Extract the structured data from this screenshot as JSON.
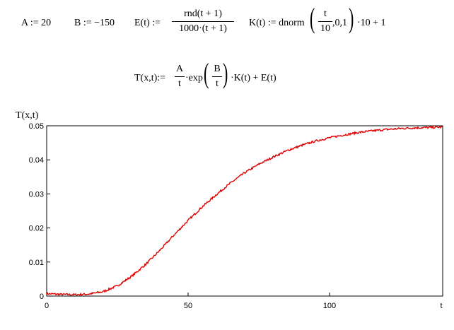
{
  "definitions": {
    "a_def": "A := 20",
    "b_def": "B := −150",
    "e_lhs": "E(t) :=",
    "e_num": "rnd(t + 1)",
    "e_den": "1000·(t + 1)",
    "k_lhs": "K(t) := dnorm",
    "k_frac_num": "t",
    "k_frac_den": "10",
    "k_args": ",0,1",
    "k_tail": "·10 + 1",
    "t_lhs": "T(x,t):=",
    "t_frac_num": "A",
    "t_frac_den": "t",
    "t_exp": "·exp",
    "t_inner_num": "B",
    "t_inner_den": "t",
    "t_tail": "·K(t) + E(t)"
  },
  "chart_data": {
    "type": "line",
    "ylabel": "T(x,t)",
    "xlabel": "t",
    "xlim": [
      0,
      140
    ],
    "ylim": [
      0,
      0.05
    ],
    "x_ticks": [
      "0",
      "50",
      "100"
    ],
    "x_tick_values": [
      0,
      50,
      100
    ],
    "y_ticks": [
      "0",
      "0.01",
      "0.02",
      "0.03",
      "0.04",
      "0.05"
    ],
    "y_tick_values": [
      0,
      0.01,
      0.02,
      0.03,
      0.04,
      0.05
    ],
    "series": [
      {
        "color": "#e00000",
        "x": [
          0,
          5,
          10,
          15,
          20,
          25,
          30,
          35,
          40,
          45,
          50,
          55,
          60,
          65,
          70,
          75,
          80,
          85,
          90,
          95,
          100,
          105,
          110,
          115,
          120,
          125,
          130,
          135,
          140
        ],
        "y": [
          0.0007,
          0.0005,
          0.0004,
          0.0006,
          0.0013,
          0.003,
          0.0058,
          0.0093,
          0.0134,
          0.0179,
          0.0222,
          0.0262,
          0.0298,
          0.0332,
          0.0362,
          0.0387,
          0.0408,
          0.0427,
          0.0442,
          0.0455,
          0.0465,
          0.0473,
          0.048,
          0.0485,
          0.0489,
          0.0492,
          0.0494,
          0.0495,
          0.0496
        ]
      }
    ],
    "grid": false,
    "legend": "none"
  }
}
